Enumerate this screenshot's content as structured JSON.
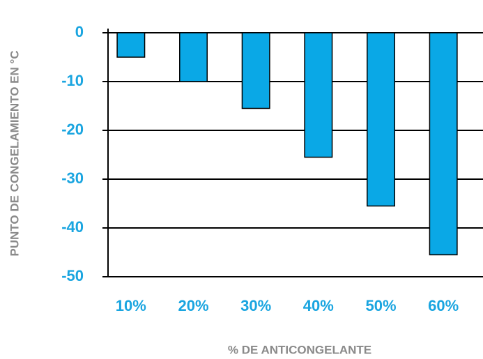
{
  "chart_data": {
    "type": "bar",
    "categories": [
      "10%",
      "20%",
      "30%",
      "40%",
      "50%",
      "60%"
    ],
    "values": [
      -5,
      -10,
      -15.5,
      -25.5,
      -35.5,
      -45.5
    ],
    "color": "#0aa8e6",
    "x_label": "% DE ANTICONGELANTE",
    "y_label": "PUNTO DE CONGELAMIENTO EN °C",
    "ylim": [
      -50,
      0
    ],
    "yticks": [
      0,
      -10,
      -20,
      -30,
      -40,
      -50
    ],
    "grid": true
  }
}
